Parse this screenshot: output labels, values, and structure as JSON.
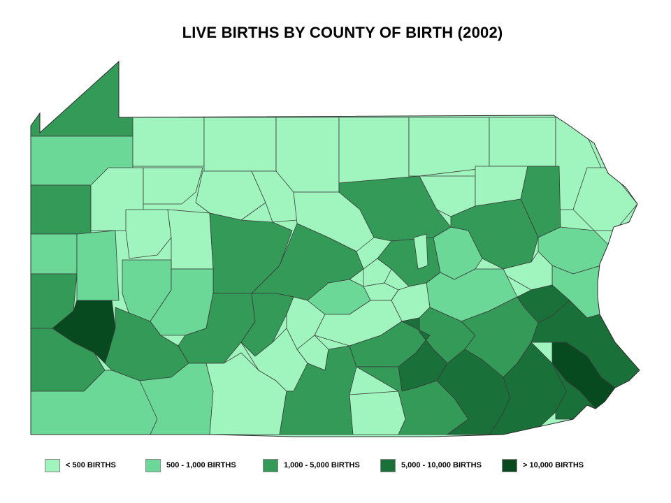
{
  "title": "LIVE BIRTHS BY COUNTY OF BIRTH (2002)",
  "colors": {
    "lt500": "#9ff5bd",
    "c500_1000": "#6cd898",
    "c1000_5000": "#339a58",
    "c5000_10000": "#1a7039",
    "gt10000": "#074a20",
    "border": "#3a3a3a"
  },
  "legend": [
    {
      "label": "< 500 BIRTHS",
      "color": "#9ff5bd"
    },
    {
      "label": "500 - 1,000 BIRTHS",
      "color": "#6cd898"
    },
    {
      "label": "1,000 - 5,000 BIRTHS",
      "color": "#339a58"
    },
    {
      "label": "5,000 - 10,000 BIRTHS",
      "color": "#1a7039"
    },
    {
      "label": "> 10,000 BIRTHS",
      "color": "#074a20"
    }
  ]
}
